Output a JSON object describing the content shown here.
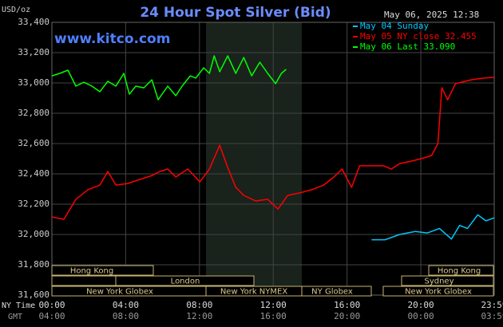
{
  "chart_data": {
    "type": "line",
    "title": "24 Hour Spot Silver (Bid)",
    "y_label": "USD/oz",
    "timestamp": "May 06, 2025 12:38",
    "watermark": "www.kitco.com",
    "x_label": "NY Time",
    "x2_label": "GMT",
    "xlim": [
      0,
      23.98
    ],
    "xticks": [
      {
        "value": 0,
        "label": "00:00"
      },
      {
        "value": 4,
        "label": "04:00"
      },
      {
        "value": 8,
        "label": "08:00"
      },
      {
        "value": 12,
        "label": "12:00"
      },
      {
        "value": 16,
        "label": "16:00"
      },
      {
        "value": 20,
        "label": "20:00"
      },
      {
        "value": 23.98,
        "label": "23:59"
      }
    ],
    "x2ticks": [
      {
        "value": 0,
        "label": "04:00"
      },
      {
        "value": 4,
        "label": "08:00"
      },
      {
        "value": 8,
        "label": "12:00"
      },
      {
        "value": 12,
        "label": "16:00"
      },
      {
        "value": 16,
        "label": "20:00"
      },
      {
        "value": 20,
        "label": "00:00"
      },
      {
        "value": 23.98,
        "label": "03:59"
      }
    ],
    "ylim": [
      31600,
      33400
    ],
    "yticks": [
      {
        "value": 31600,
        "label": "31,600"
      },
      {
        "value": 31800,
        "label": "31,800"
      },
      {
        "value": 32000,
        "label": "32,000"
      },
      {
        "value": 32200,
        "label": "32,200"
      },
      {
        "value": 32400,
        "label": "32,400"
      },
      {
        "value": 32600,
        "label": "32,600"
      },
      {
        "value": 32800,
        "label": "32,800"
      },
      {
        "value": 33000,
        "label": "33,000"
      },
      {
        "value": 33200,
        "label": "33,200"
      },
      {
        "value": 33400,
        "label": "33,400"
      }
    ],
    "grid": true,
    "series": [
      {
        "name": "May 04 Sunday",
        "color": "#00c8ff",
        "x": [
          17.33,
          18.07,
          18.85,
          19.71,
          20.36,
          21.01,
          21.66,
          22.1,
          22.53,
          23.09,
          23.53,
          23.98
        ],
        "values": [
          31965,
          31965,
          32000,
          32020,
          32010,
          32040,
          31970,
          32060,
          32040,
          32130,
          32090,
          32110
        ]
      },
      {
        "name": "May 05 NY close 32.455",
        "color": "#ff0000",
        "x": [
          0,
          0.65,
          1.3,
          1.95,
          2.6,
          3.03,
          3.47,
          4.12,
          4.77,
          5.42,
          5.85,
          6.28,
          6.72,
          7.37,
          8.02,
          8.54,
          9.1,
          9.53,
          9.97,
          10.4,
          11.05,
          11.7,
          12.26,
          12.78,
          13.43,
          14.08,
          14.73,
          15.29,
          15.73,
          16.25,
          16.68,
          17.33,
          17.98,
          18.41,
          18.85,
          19.5,
          20.15,
          20.58,
          20.93,
          21.14,
          21.45,
          21.88,
          22.75,
          23.4,
          23.98
        ],
        "values": [
          32116,
          32100,
          32232,
          32295,
          32326,
          32416,
          32326,
          32337,
          32363,
          32389,
          32416,
          32432,
          32379,
          32432,
          32347,
          32432,
          32589,
          32442,
          32311,
          32258,
          32221,
          32232,
          32168,
          32258,
          32274,
          32295,
          32326,
          32379,
          32432,
          32311,
          32453,
          32453,
          32453,
          32432,
          32468,
          32484,
          32505,
          32521,
          32600,
          32968,
          32889,
          32995,
          33021,
          33032,
          33037
        ]
      },
      {
        "name": "May 06 Last 33.090",
        "color": "#00ff00",
        "x": [
          0,
          0.43,
          0.87,
          1.3,
          1.73,
          2.17,
          2.6,
          3.03,
          3.47,
          3.9,
          4.2,
          4.55,
          4.98,
          5.42,
          5.76,
          6.28,
          6.72,
          7.06,
          7.5,
          7.8,
          8.23,
          8.54,
          8.8,
          9.1,
          9.53,
          9.97,
          10.4,
          10.83,
          11.27,
          11.7,
          12.13,
          12.44,
          12.7
        ],
        "values": [
          33047,
          33063,
          33084,
          32979,
          33005,
          32979,
          32942,
          33011,
          32979,
          33063,
          32926,
          32979,
          32968,
          33021,
          32889,
          32979,
          32916,
          32979,
          33047,
          33032,
          33100,
          33063,
          33179,
          33074,
          33179,
          33063,
          33168,
          33047,
          33137,
          33063,
          32995,
          33063,
          33090
        ]
      }
    ],
    "markets": [
      "Hong Kong",
      "London",
      "New York Globex",
      "New York NYMEX",
      "NY Globex",
      "Hong Kong",
      "Sydney",
      "New York Globex"
    ]
  }
}
